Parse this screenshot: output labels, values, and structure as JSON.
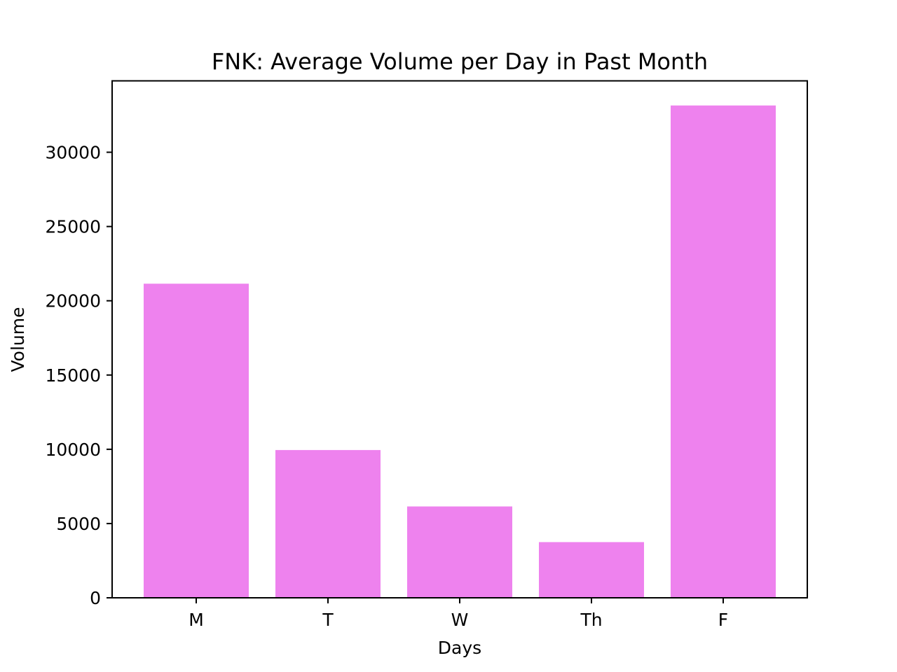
{
  "chart_data": {
    "type": "bar",
    "title": "FNK: Average Volume per Day in Past Month",
    "xlabel": "Days",
    "ylabel": "Volume",
    "categories": [
      "M",
      "T",
      "W",
      "Th",
      "F"
    ],
    "values": [
      21150,
      9950,
      6150,
      3750,
      33150
    ],
    "ylim": [
      0,
      34808
    ],
    "yticks": [
      0,
      5000,
      10000,
      15000,
      20000,
      25000,
      30000
    ],
    "ytick_labels": [
      "0",
      "5000",
      "10000",
      "15000",
      "20000",
      "25000",
      "30000"
    ],
    "bar_color": "#ee82ee",
    "grid": false,
    "legend": "none"
  }
}
